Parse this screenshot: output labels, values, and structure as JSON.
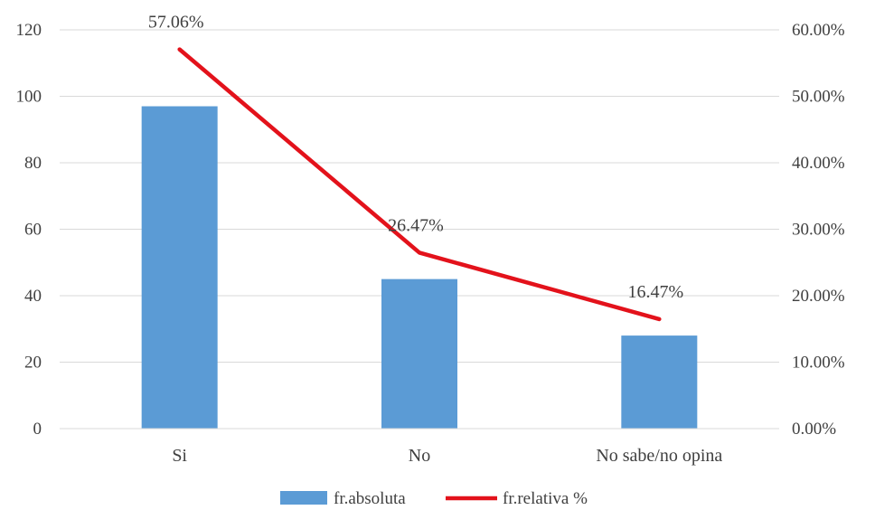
{
  "chart_data": {
    "type": "bar",
    "categories": [
      "Si",
      "No",
      "No sabe/no opina"
    ],
    "series": [
      {
        "name": "fr.absoluta",
        "type": "bar",
        "axis": "left",
        "color": "#5b9bd5",
        "values": [
          97,
          45,
          28
        ]
      },
      {
        "name": "fr.relativa %",
        "type": "line",
        "axis": "right",
        "color": "#e3121b",
        "values": [
          57.06,
          26.47,
          16.47
        ]
      }
    ],
    "data_labels": [
      "57.06%",
      "26.47%",
      "16.47%"
    ],
    "y_left": {
      "ylim": [
        0,
        120
      ],
      "ticks": [
        "0",
        "20",
        "40",
        "60",
        "80",
        "100",
        "120"
      ]
    },
    "y_right": {
      "ylim": [
        0,
        60
      ],
      "ticks": [
        "0.00%",
        "10.00%",
        "20.00%",
        "30.00%",
        "40.00%",
        "50.00%",
        "60.00%"
      ]
    },
    "grid": true,
    "legend": "bottom",
    "title": "",
    "xlabel": "",
    "ylabel": ""
  }
}
